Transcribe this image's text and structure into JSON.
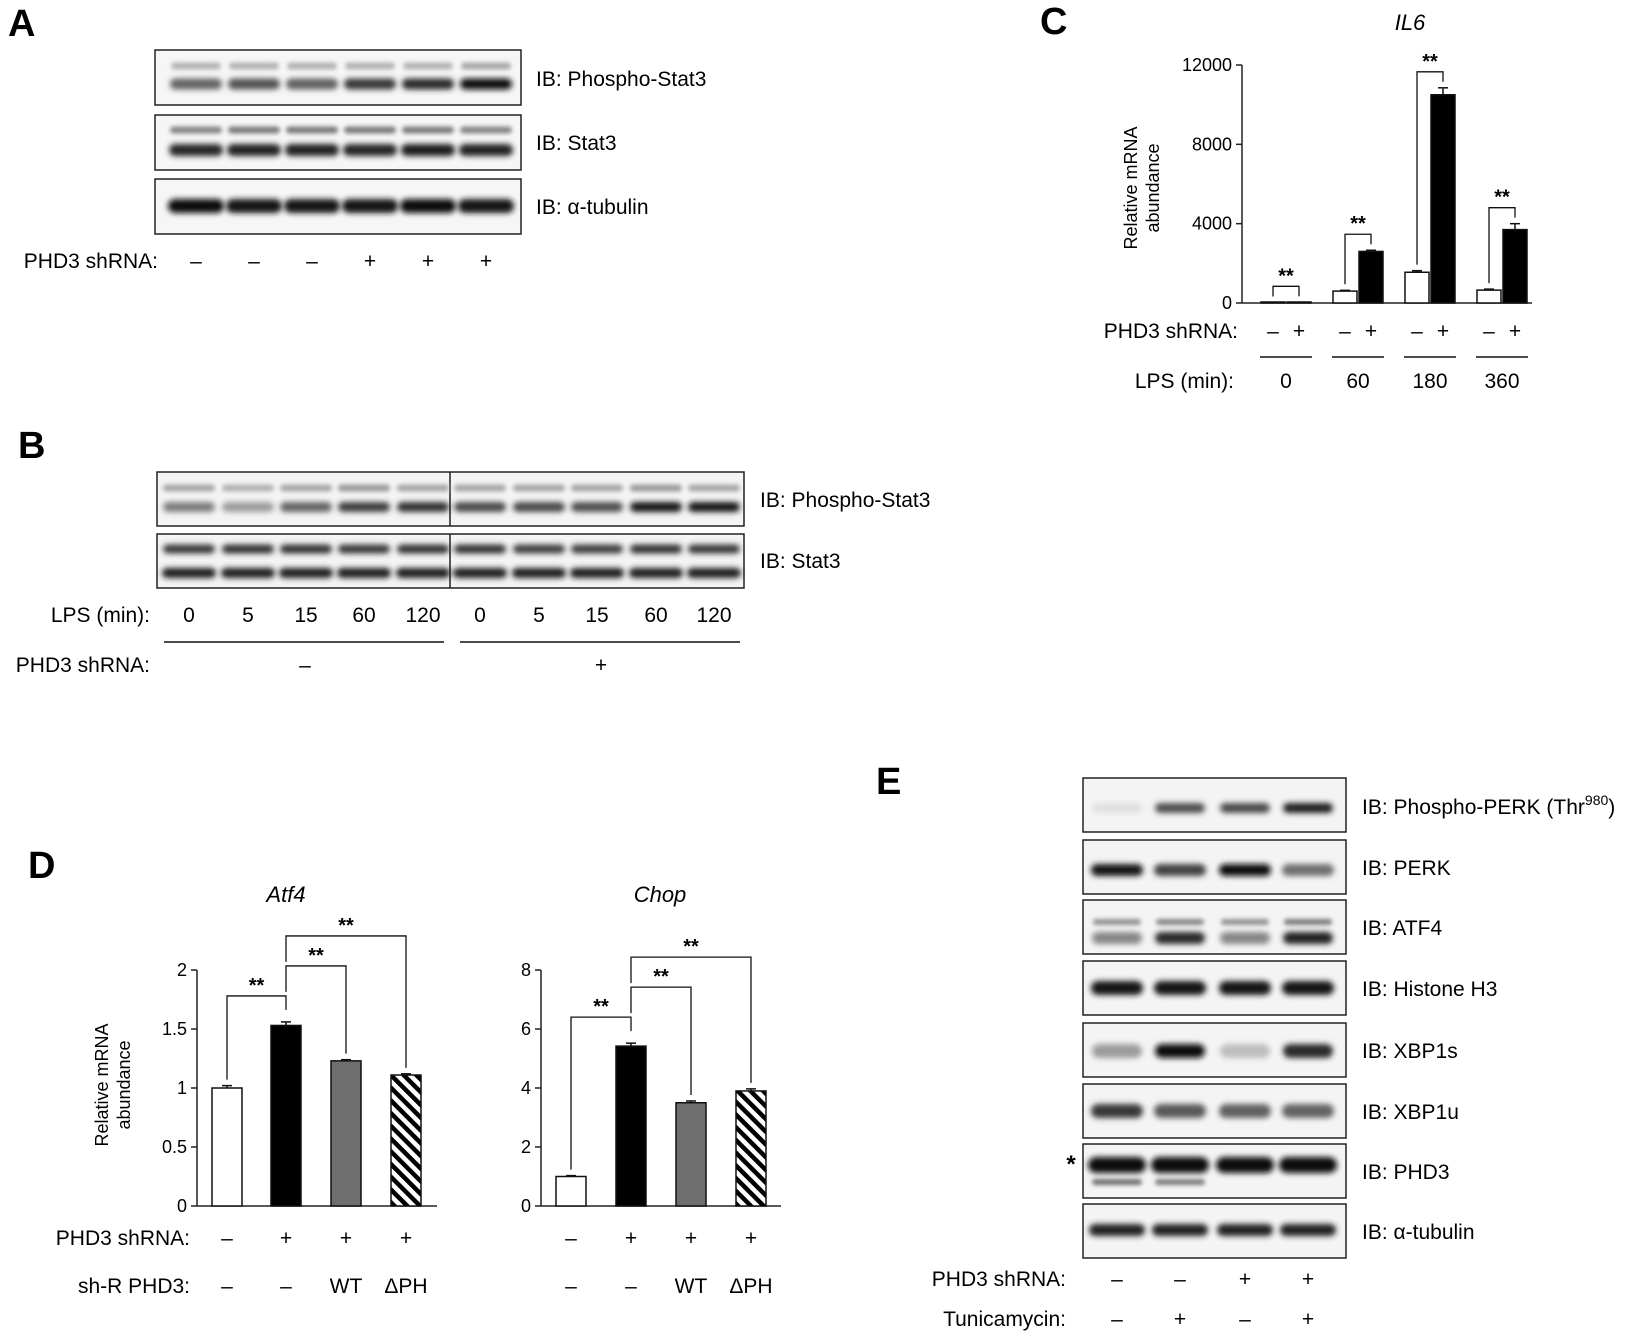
{
  "panelA": {
    "letter": "A",
    "blots": [
      "IB: Phospho-Stat3",
      "IB: Stat3",
      "IB: α-tubulin"
    ],
    "row_label": "PHD3 shRNA:",
    "row_values": [
      "–",
      "–",
      "–",
      "+",
      "+",
      "+"
    ]
  },
  "panelB": {
    "letter": "B",
    "blots": [
      "IB: Phospho-Stat3",
      "IB: Stat3"
    ],
    "lps_label": "LPS (min):",
    "lps_values": [
      "0",
      "5",
      "15",
      "60",
      "120",
      "0",
      "5",
      "15",
      "60",
      "120"
    ],
    "shrna_label": "PHD3 shRNA:",
    "shrna_groups": [
      "–",
      "+"
    ]
  },
  "panelC": {
    "letter": "C",
    "row_label": "PHD3 shRNA:",
    "row_values": [
      "–",
      "+",
      "–",
      "+",
      "–",
      "+",
      "–",
      "+"
    ],
    "lps_label": "LPS (min):",
    "lps_values": [
      "0",
      "60",
      "180",
      "360"
    ],
    "significance": [
      "**",
      "**",
      "**",
      "**"
    ]
  },
  "panelD": {
    "letter": "D",
    "row1_label": "PHD3 shRNA:",
    "row1_values": [
      "–",
      "+",
      "+",
      "+"
    ],
    "row2_label": "sh-R PHD3:",
    "row2_values": [
      "–",
      "–",
      "WT",
      "ΔPH"
    ],
    "significance": [
      "**",
      "**",
      "**"
    ]
  },
  "panelE": {
    "letter": "E",
    "blots": [
      "IB: Phospho-PERK (Thr",
      "IB: PERK",
      "IB: ATF4",
      "IB: Histone H3",
      "IB: XBP1s",
      "IB: XBP1u",
      "IB: PHD3",
      "IB: α-tubulin"
    ],
    "perk_sup": "980",
    "perk_close": ")",
    "asterisk": "*",
    "row1_label": "PHD3 shRNA:",
    "row1_values": [
      "–",
      "–",
      "+",
      "+"
    ],
    "row2_label": "Tunicamycin:",
    "row2_values": [
      "–",
      "+",
      "–",
      "+"
    ]
  },
  "chart_data": [
    {
      "type": "bar",
      "title": "IL6",
      "ylabel": "Relative mRNA abundance",
      "ylim": [
        0,
        12000
      ],
      "yticks": [
        "0",
        "4000",
        "8000",
        "12000"
      ],
      "categories": [
        "0",
        "60",
        "180",
        "360"
      ],
      "series": [
        {
          "values": [
            20,
            600,
            1550,
            650
          ],
          "errors": [
            5,
            40,
            80,
            50
          ],
          "color": "#ffffff"
        },
        {
          "values": [
            30,
            2600,
            10500,
            3700
          ],
          "errors": [
            5,
            60,
            350,
            300
          ],
          "color": "#000000"
        }
      ]
    },
    {
      "type": "bar",
      "title": "Atf4",
      "ylabel": "Relative mRNA abundance",
      "ylim": [
        0,
        2
      ],
      "yticks": [
        "0",
        "0.5",
        "1",
        "1.5",
        "2"
      ],
      "values": [
        1.0,
        1.53,
        1.23,
        1.11
      ],
      "errors": [
        0.02,
        0.03,
        0.01,
        0.01
      ],
      "fills": [
        "white",
        "black",
        "gray",
        "hatch"
      ]
    },
    {
      "type": "bar",
      "title": "Chop",
      "ylim": [
        0,
        8
      ],
      "yticks": [
        "0",
        "2",
        "4",
        "6",
        "8"
      ],
      "values": [
        1.0,
        5.42,
        3.5,
        3.9
      ],
      "errors": [
        0.03,
        0.1,
        0.06,
        0.07
      ],
      "fills": [
        "white",
        "black",
        "gray",
        "hatch"
      ]
    }
  ]
}
